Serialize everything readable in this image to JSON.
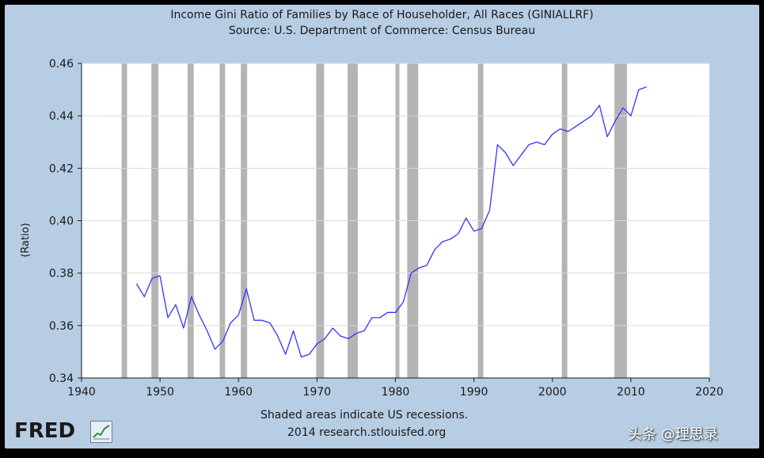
{
  "chart_data": {
    "type": "line",
    "title": "Income Gini Ratio of Families by Race of Householder, All Races (GINIALLRF)",
    "subtitle": "Source: U.S. Department of Commerce: Census Bureau",
    "xlabel": "",
    "ylabel": "(Ratio)",
    "xlim": [
      1940,
      2020
    ],
    "ylim": [
      0.34,
      0.46
    ],
    "x_ticks": [
      "1940",
      "1950",
      "1960",
      "1970",
      "1980",
      "1990",
      "2000",
      "2010",
      "2020"
    ],
    "y_ticks": [
      "0.34",
      "0.36",
      "0.38",
      "0.40",
      "0.42",
      "0.44",
      "0.46"
    ],
    "grid": true,
    "line_color": "#3333ff",
    "recession_color": "#b4b4b4",
    "recessions": [
      [
        1945.1,
        1945.8
      ],
      [
        1948.9,
        1949.8
      ],
      [
        1953.5,
        1954.3
      ],
      [
        1957.6,
        1958.3
      ],
      [
        1960.3,
        1961.1
      ],
      [
        1969.9,
        1970.9
      ],
      [
        1973.9,
        1975.2
      ],
      [
        1980.0,
        1980.5
      ],
      [
        1981.5,
        1982.9
      ],
      [
        1990.5,
        1991.2
      ],
      [
        2001.2,
        2001.9
      ],
      [
        2007.9,
        2009.5
      ]
    ],
    "series": [
      {
        "x": [
          1947,
          1948,
          1949,
          1950,
          1951,
          1952,
          1953,
          1954,
          1955,
          1956,
          1957,
          1958,
          1959,
          1960,
          1961,
          1962,
          1963,
          1964,
          1965,
          1966,
          1967,
          1968,
          1969,
          1970,
          1971,
          1972,
          1973,
          1974,
          1975,
          1976,
          1977,
          1978,
          1979,
          1980,
          1981,
          1982,
          1983,
          1984,
          1985,
          1986,
          1987,
          1988,
          1989,
          1990,
          1991,
          1992,
          1993,
          1994,
          1995,
          1996,
          1997,
          1998,
          1999,
          2000,
          2001,
          2002,
          2003,
          2004,
          2005,
          2006,
          2007,
          2008,
          2009,
          2010,
          2011,
          2012
        ],
        "values": [
          0.376,
          0.371,
          0.378,
          0.379,
          0.363,
          0.368,
          0.359,
          0.371,
          0.364,
          0.358,
          0.351,
          0.354,
          0.361,
          0.364,
          0.374,
          0.362,
          0.362,
          0.361,
          0.356,
          0.349,
          0.358,
          0.348,
          0.349,
          0.353,
          0.355,
          0.359,
          0.356,
          0.355,
          0.357,
          0.358,
          0.363,
          0.363,
          0.365,
          0.365,
          0.369,
          0.38,
          0.382,
          0.383,
          0.389,
          0.392,
          0.393,
          0.395,
          0.401,
          0.396,
          0.397,
          0.404,
          0.429,
          0.426,
          0.421,
          0.425,
          0.429,
          0.43,
          0.429,
          0.433,
          0.435,
          0.434,
          0.436,
          0.438,
          0.44,
          0.444,
          0.432,
          0.438,
          0.443,
          0.44,
          0.45,
          0.451
        ]
      }
    ]
  },
  "footer": {
    "note": "Shaded areas indicate US recessions.",
    "credit": "2014 research.stlouisfed.org"
  },
  "branding": {
    "logo_text": "FRED",
    "logo_icon": "chart-badge-icon",
    "watermark": "头条 @理思录"
  }
}
